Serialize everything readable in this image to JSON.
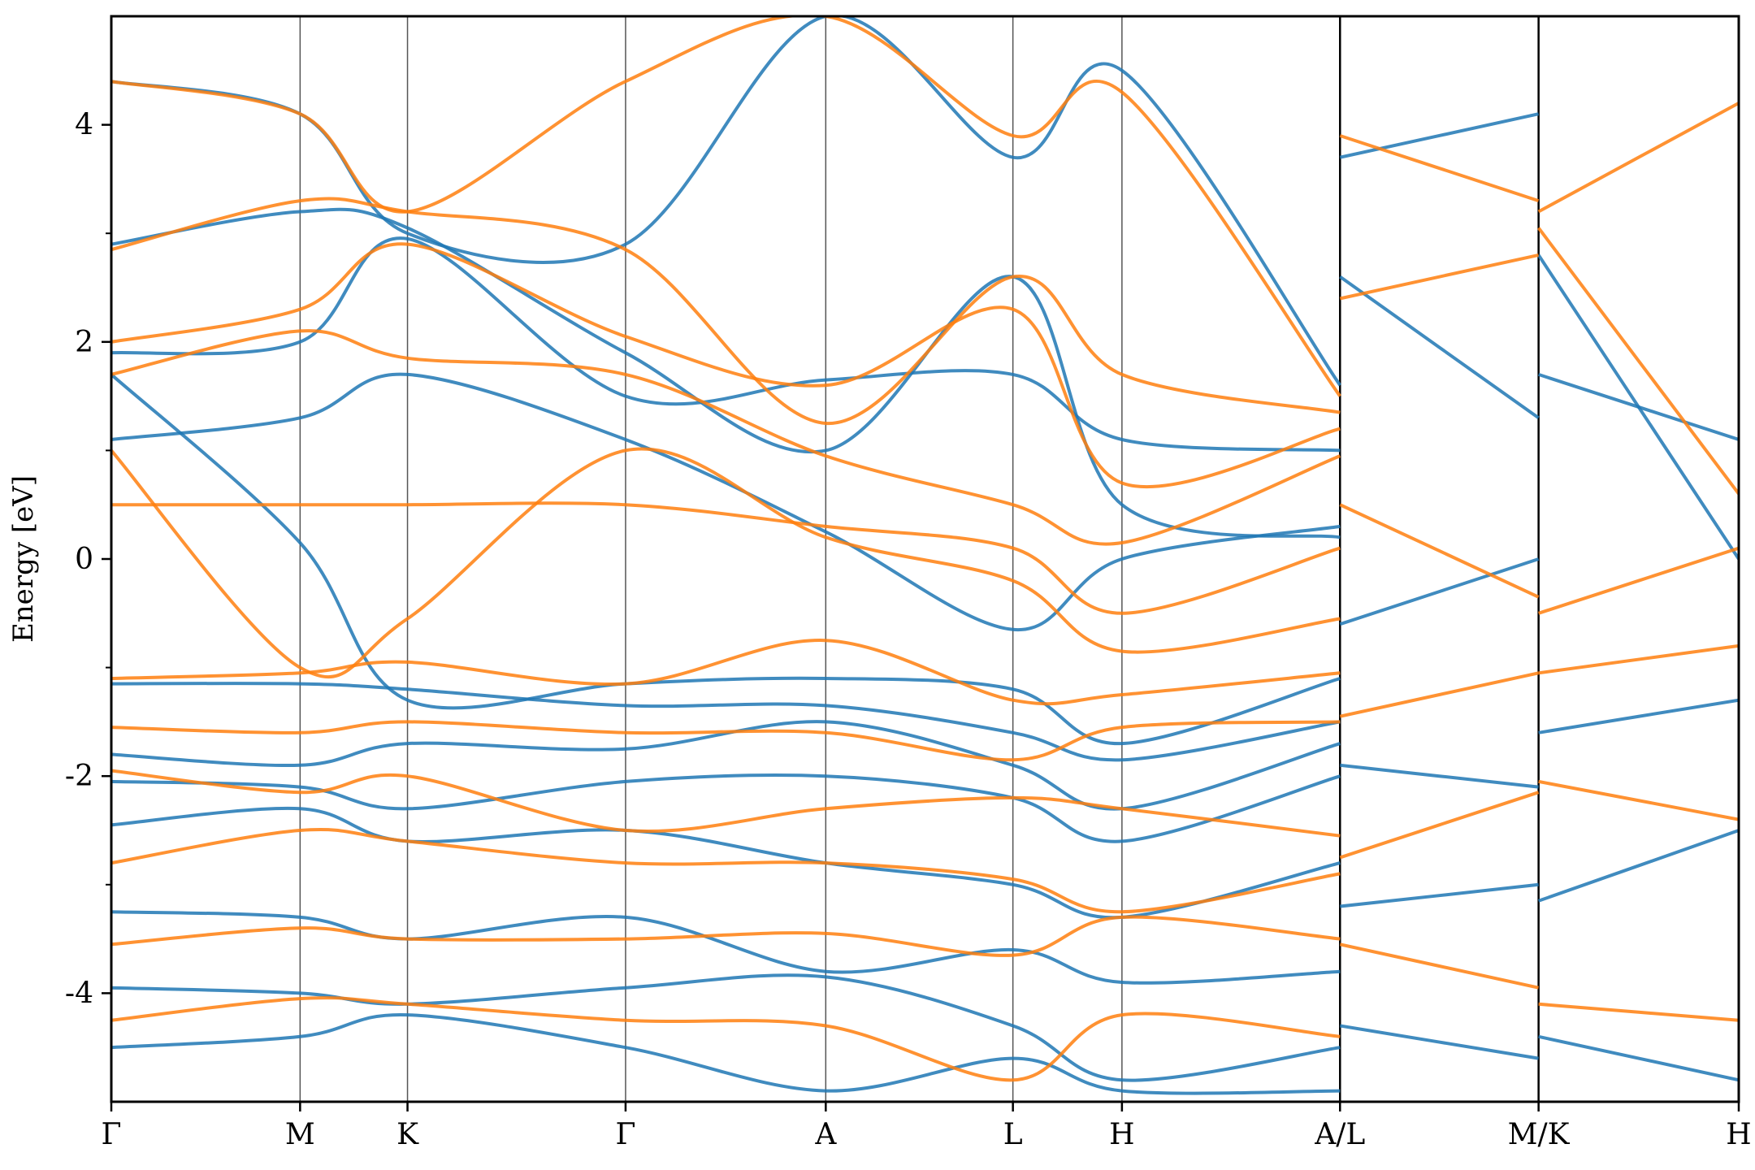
{
  "chart_data": {
    "type": "line",
    "title": "",
    "xlabel": "",
    "ylabel": "Energy [eV]",
    "ylim": [
      -5,
      5
    ],
    "y_ticks": [
      -4,
      -2,
      0,
      2,
      4
    ],
    "y_tick_labels": [
      "-4",
      "-2",
      "0",
      "2",
      "4"
    ],
    "y_minor_ticks": [
      -3,
      -1,
      1,
      3
    ],
    "x_range": [
      0,
      10
    ],
    "k_points": [
      {
        "label": "Γ",
        "x": 0.0
      },
      {
        "label": "M",
        "x": 1.16
      },
      {
        "label": "K",
        "x": 1.82
      },
      {
        "label": "Γ",
        "x": 3.16
      },
      {
        "label": "A",
        "x": 4.39
      },
      {
        "label": "L",
        "x": 5.54
      },
      {
        "label": "H",
        "x": 6.21
      },
      {
        "label": "A/L",
        "x": 7.55
      },
      {
        "label": "M/K",
        "x": 8.77
      },
      {
        "label": "H",
        "x": 10.0
      }
    ],
    "path_breaks": [
      7.55,
      8.77
    ],
    "grid": "vertical lines at high-symmetry points",
    "colors": {
      "series_1": "#1f77b4",
      "series_2": "#ff7f0e",
      "kline": "#555555"
    },
    "series": [
      {
        "color": "#1f77b4",
        "bands": [
          {
            "x": [
              0,
              1.16,
              1.82,
              3.16,
              4.39,
              5.54,
              6.21,
              7.55
            ],
            "y": [
              4.4,
              4.1,
              3.0,
              2.9,
              5.0,
              3.7,
              4.5,
              1.6
            ]
          },
          {
            "x": [
              0,
              1.16,
              1.82,
              3.16,
              4.39,
              5.54,
              6.21,
              7.55
            ],
            "y": [
              2.9,
              3.2,
              3.05,
              1.9,
              1.0,
              2.6,
              0.5,
              0.2
            ]
          },
          {
            "x": [
              0,
              1.16,
              1.82,
              3.16,
              4.39,
              5.54,
              6.21,
              7.55
            ],
            "y": [
              1.9,
              2.0,
              2.95,
              1.5,
              1.65,
              1.7,
              1.1,
              1.0
            ]
          },
          {
            "x": [
              0,
              1.16,
              1.82,
              3.16,
              4.39,
              5.54,
              6.21,
              7.55
            ],
            "y": [
              1.1,
              1.3,
              1.7,
              1.1,
              0.25,
              -0.65,
              0.0,
              0.3
            ]
          },
          {
            "x": [
              0,
              1.16,
              1.82,
              3.16,
              4.39,
              5.54,
              6.21,
              7.55
            ],
            "y": [
              1.7,
              0.15,
              -1.3,
              -1.15,
              -1.1,
              -1.2,
              -1.7,
              -1.1
            ]
          },
          {
            "x": [
              0,
              1.16,
              1.82,
              3.16,
              4.39,
              5.54,
              6.21,
              7.55
            ],
            "y": [
              -1.15,
              -1.15,
              -1.2,
              -1.35,
              -1.35,
              -1.6,
              -1.85,
              -1.5
            ]
          },
          {
            "x": [
              0,
              1.16,
              1.82,
              3.16,
              4.39,
              5.54,
              6.21,
              7.55
            ],
            "y": [
              -1.8,
              -1.9,
              -1.7,
              -1.75,
              -1.5,
              -1.9,
              -2.3,
              -1.7
            ]
          },
          {
            "x": [
              0,
              1.16,
              1.82,
              3.16,
              4.39,
              5.54,
              6.21,
              7.55
            ],
            "y": [
              -2.05,
              -2.1,
              -2.3,
              -2.05,
              -2.0,
              -2.2,
              -2.6,
              -2.0
            ]
          },
          {
            "x": [
              0,
              1.16,
              1.82,
              3.16,
              4.39,
              5.54,
              6.21,
              7.55
            ],
            "y": [
              -2.45,
              -2.3,
              -2.6,
              -2.5,
              -2.8,
              -3.0,
              -3.3,
              -2.8
            ]
          },
          {
            "x": [
              0,
              1.16,
              1.82,
              3.16,
              4.39,
              5.54,
              6.21,
              7.55
            ],
            "y": [
              -3.25,
              -3.3,
              -3.5,
              -3.3,
              -3.8,
              -3.6,
              -3.9,
              -3.8
            ]
          },
          {
            "x": [
              0,
              1.16,
              1.82,
              3.16,
              4.39,
              5.54,
              6.21,
              7.55
            ],
            "y": [
              -3.95,
              -4.0,
              -4.1,
              -3.95,
              -3.85,
              -4.3,
              -4.8,
              -4.5
            ]
          },
          {
            "x": [
              0,
              1.16,
              1.82,
              3.16,
              4.39,
              5.54,
              6.21,
              7.55
            ],
            "y": [
              -4.5,
              -4.4,
              -4.2,
              -4.5,
              -4.9,
              -4.6,
              -4.9,
              -4.9
            ]
          },
          {
            "x": [
              7.55,
              8.77
            ],
            "y": [
              3.7,
              4.1
            ]
          },
          {
            "x": [
              7.55,
              8.77
            ],
            "y": [
              2.6,
              1.3
            ]
          },
          {
            "x": [
              7.55,
              8.77
            ],
            "y": [
              -0.6,
              0.0
            ]
          },
          {
            "x": [
              7.55,
              8.77
            ],
            "y": [
              -1.9,
              -2.1
            ]
          },
          {
            "x": [
              7.55,
              8.77
            ],
            "y": [
              -3.2,
              -3.0
            ]
          },
          {
            "x": [
              7.55,
              8.77
            ],
            "y": [
              -4.3,
              -4.6
            ]
          },
          {
            "x": [
              8.77,
              10.0
            ],
            "y": [
              2.8,
              0.0
            ]
          },
          {
            "x": [
              8.77,
              10.0
            ],
            "y": [
              1.7,
              1.1
            ]
          },
          {
            "x": [
              8.77,
              10.0
            ],
            "y": [
              -1.6,
              -1.3
            ]
          },
          {
            "x": [
              8.77,
              10.0
            ],
            "y": [
              -3.15,
              -2.5
            ]
          },
          {
            "x": [
              8.77,
              10.0
            ],
            "y": [
              -4.4,
              -4.8
            ]
          }
        ]
      },
      {
        "color": "#ff7f0e",
        "bands": [
          {
            "x": [
              0,
              1.16,
              1.82,
              3.16,
              4.39,
              5.54,
              6.21,
              7.55
            ],
            "y": [
              4.4,
              4.1,
              3.2,
              4.4,
              5.0,
              3.9,
              4.3,
              1.5
            ]
          },
          {
            "x": [
              0,
              1.16,
              1.82,
              3.16,
              4.39,
              5.54,
              6.21,
              7.55
            ],
            "y": [
              2.85,
              3.3,
              3.2,
              2.85,
              1.25,
              2.6,
              1.7,
              1.35
            ]
          },
          {
            "x": [
              0,
              1.16,
              1.82,
              3.16,
              4.39,
              5.54,
              6.21,
              7.55
            ],
            "y": [
              2.0,
              2.3,
              2.9,
              2.05,
              1.6,
              2.3,
              0.7,
              1.2
            ]
          },
          {
            "x": [
              0,
              1.16,
              1.82,
              3.16,
              4.39,
              5.54,
              6.21,
              7.55
            ],
            "y": [
              1.7,
              2.1,
              1.85,
              1.7,
              0.95,
              0.5,
              0.15,
              0.95
            ]
          },
          {
            "x": [
              0,
              1.16,
              1.82,
              3.16,
              4.39,
              5.54,
              6.21,
              7.55
            ],
            "y": [
              0.5,
              0.5,
              0.5,
              0.5,
              0.3,
              0.1,
              -0.5,
              0.1
            ]
          },
          {
            "x": [
              0,
              1.16,
              1.82,
              3.16,
              4.39,
              5.54,
              6.21,
              7.55
            ],
            "y": [
              1.0,
              -1.0,
              -0.55,
              1.0,
              0.2,
              -0.2,
              -0.85,
              -0.55
            ]
          },
          {
            "x": [
              0,
              1.16,
              1.82,
              3.16,
              4.39,
              5.54,
              6.21,
              7.55
            ],
            "y": [
              -1.1,
              -1.05,
              -0.95,
              -1.15,
              -0.75,
              -1.3,
              -1.25,
              -1.05
            ]
          },
          {
            "x": [
              0,
              1.16,
              1.82,
              3.16,
              4.39,
              5.54,
              6.21,
              7.55
            ],
            "y": [
              -1.55,
              -1.6,
              -1.5,
              -1.6,
              -1.6,
              -1.85,
              -1.55,
              -1.5
            ]
          },
          {
            "x": [
              0,
              1.16,
              1.82,
              3.16,
              4.39,
              5.54,
              6.21,
              7.55
            ],
            "y": [
              -1.95,
              -2.15,
              -2.0,
              -2.5,
              -2.3,
              -2.2,
              -2.3,
              -2.55
            ]
          },
          {
            "x": [
              0,
              1.16,
              1.82,
              3.16,
              4.39,
              5.54,
              6.21,
              7.55
            ],
            "y": [
              -2.8,
              -2.5,
              -2.6,
              -2.8,
              -2.8,
              -2.95,
              -3.25,
              -2.9
            ]
          },
          {
            "x": [
              0,
              1.16,
              1.82,
              3.16,
              4.39,
              5.54,
              6.21,
              7.55
            ],
            "y": [
              -3.55,
              -3.4,
              -3.5,
              -3.5,
              -3.45,
              -3.65,
              -3.3,
              -3.5
            ]
          },
          {
            "x": [
              0,
              1.16,
              1.82,
              3.16,
              4.39,
              5.54,
              6.21,
              7.55
            ],
            "y": [
              -4.25,
              -4.05,
              -4.1,
              -4.25,
              -4.3,
              -4.8,
              -4.2,
              -4.4
            ]
          },
          {
            "x": [
              7.55,
              8.77
            ],
            "y": [
              3.9,
              3.3
            ]
          },
          {
            "x": [
              7.55,
              8.77
            ],
            "y": [
              2.4,
              2.8
            ]
          },
          {
            "x": [
              7.55,
              8.77
            ],
            "y": [
              0.5,
              -0.35
            ]
          },
          {
            "x": [
              7.55,
              8.77
            ],
            "y": [
              -1.45,
              -1.05
            ]
          },
          {
            "x": [
              7.55,
              8.77
            ],
            "y": [
              -2.75,
              -2.15
            ]
          },
          {
            "x": [
              7.55,
              8.77
            ],
            "y": [
              -3.55,
              -3.95
            ]
          },
          {
            "x": [
              8.77,
              10.0
            ],
            "y": [
              3.2,
              4.2
            ]
          },
          {
            "x": [
              8.77,
              10.0
            ],
            "y": [
              3.05,
              0.6
            ]
          },
          {
            "x": [
              8.77,
              10.0
            ],
            "y": [
              -0.5,
              0.1
            ]
          },
          {
            "x": [
              8.77,
              10.0
            ],
            "y": [
              -1.05,
              -0.8
            ]
          },
          {
            "x": [
              8.77,
              10.0
            ],
            "y": [
              -2.05,
              -2.4
            ]
          },
          {
            "x": [
              8.77,
              10.0
            ],
            "y": [
              -4.1,
              -4.25
            ]
          }
        ]
      }
    ]
  }
}
